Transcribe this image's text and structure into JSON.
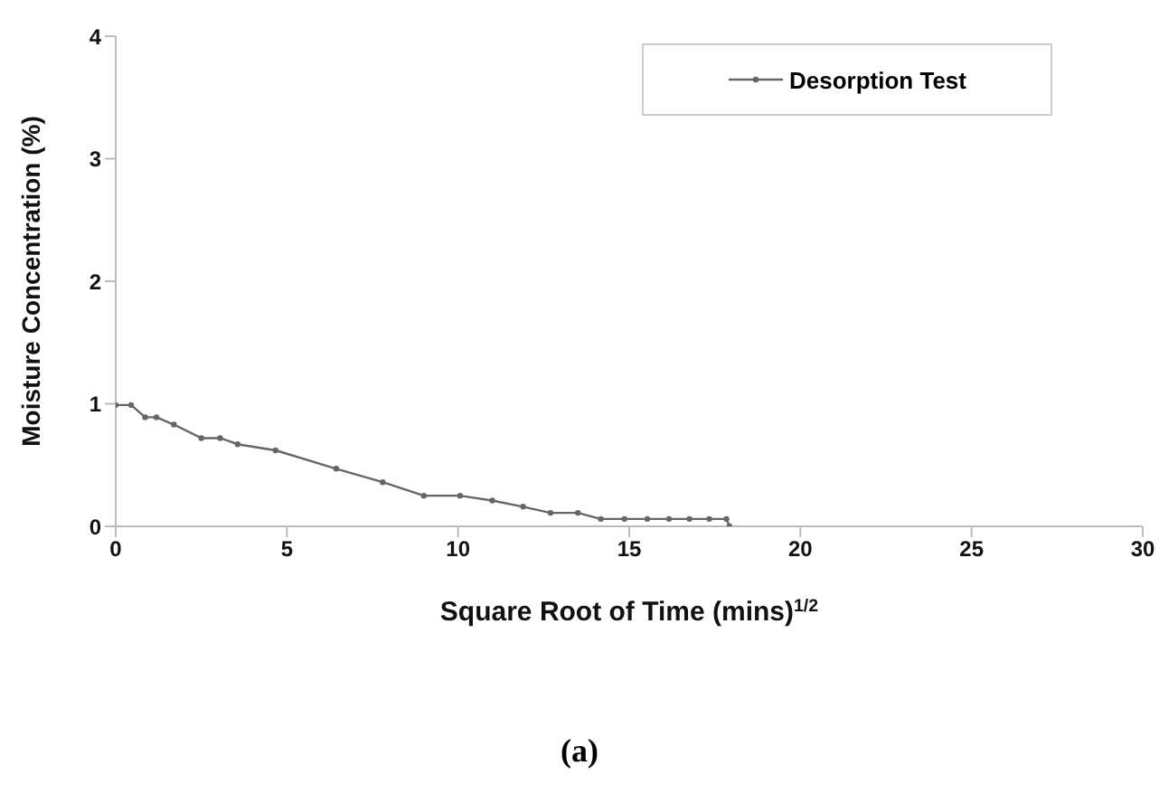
{
  "chart_data": {
    "type": "line",
    "xlabel": "Square Root of Time (mins)$^{1/2}$",
    "ylabel": "Moisture Concentration (%)",
    "annotations": [
      "(a)"
    ],
    "series": [
      {
        "name": "Desorption Test",
        "color": "#666666",
        "x": [
          0,
          0.45,
          0.86,
          1.19,
          1.7,
          2.5,
          3.05,
          3.56,
          4.67,
          6.44,
          7.8,
          9.0,
          10.06,
          11.0,
          11.9,
          12.7,
          13.5,
          14.17,
          14.86,
          15.53,
          16.16,
          16.76,
          17.34,
          17.84,
          17.93
        ],
        "values": [
          0.99,
          0.99,
          0.89,
          0.89,
          0.83,
          0.72,
          0.72,
          0.67,
          0.62,
          0.47,
          0.36,
          0.25,
          0.25,
          0.21,
          0.16,
          0.11,
          0.11,
          0.06,
          0.06,
          0.06,
          0.06,
          0.06,
          0.06,
          0.06,
          0
        ]
      }
    ],
    "xlim": [
      0,
      30
    ],
    "xticks": [
      0,
      5,
      10,
      15,
      20,
      25,
      30
    ],
    "ylim": [
      0,
      4
    ],
    "yticks": [
      0,
      1,
      2,
      3,
      4
    ],
    "grid": false,
    "legend": "top right",
    "marker": "circle",
    "line_style": "solid"
  }
}
